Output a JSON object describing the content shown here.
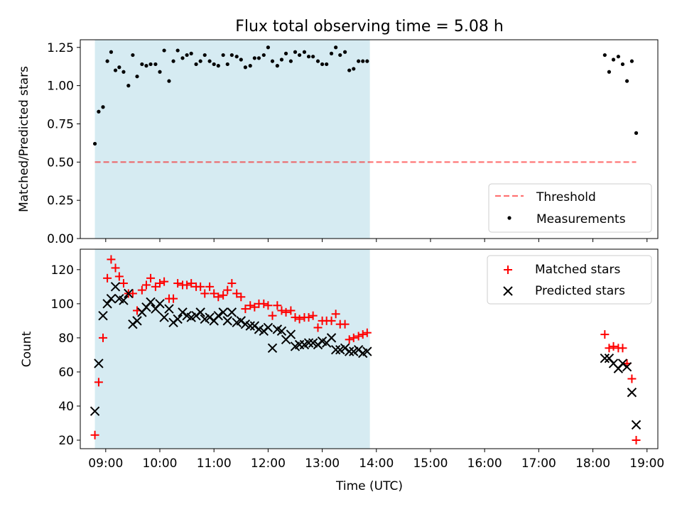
{
  "chart_data": [
    {
      "type": "scatter",
      "title": "Flux total observing time = 5.08 h",
      "xlabel": "",
      "ylabel": "Matched/Predicted stars",
      "xlim": [
        8.53,
        19.2
      ],
      "ylim": [
        0.0,
        1.3
      ],
      "yticks": [
        "0.00",
        "0.25",
        "0.50",
        "0.75",
        "1.00",
        "1.25"
      ],
      "ytick_values": [
        0.0,
        0.25,
        0.5,
        0.75,
        1.0,
        1.25
      ],
      "shaded_span": [
        8.8,
        13.88
      ],
      "shaded_color": "#add8e6",
      "legend_position": "lower-right",
      "series": [
        {
          "name": "Threshold",
          "style": "dashed-line",
          "color": "#ff0000",
          "x": [
            8.8,
            18.8
          ],
          "y": [
            0.5,
            0.5
          ]
        },
        {
          "name": "Measurements",
          "style": "dot",
          "color": "#000000",
          "x": [
            8.8,
            8.87,
            8.95,
            9.03,
            9.1,
            9.18,
            9.25,
            9.33,
            9.42,
            9.5,
            9.58,
            9.67,
            9.75,
            9.83,
            9.92,
            10.0,
            10.08,
            10.17,
            10.25,
            10.33,
            10.42,
            10.5,
            10.58,
            10.67,
            10.75,
            10.83,
            10.92,
            11.0,
            11.08,
            11.17,
            11.25,
            11.33,
            11.42,
            11.5,
            11.58,
            11.67,
            11.75,
            11.83,
            11.92,
            12.0,
            12.08,
            12.17,
            12.25,
            12.33,
            12.42,
            12.5,
            12.58,
            12.67,
            12.75,
            12.83,
            12.92,
            13.0,
            13.08,
            13.17,
            13.25,
            13.33,
            13.42,
            13.5,
            13.58,
            13.67,
            13.75,
            13.83,
            18.22,
            18.3,
            18.38,
            18.47,
            18.55,
            18.63,
            18.72,
            18.8
          ],
          "y": [
            0.62,
            0.83,
            0.86,
            1.16,
            1.22,
            1.1,
            1.12,
            1.09,
            1.0,
            1.2,
            1.06,
            1.14,
            1.13,
            1.14,
            1.14,
            1.09,
            1.23,
            1.03,
            1.16,
            1.23,
            1.18,
            1.2,
            1.21,
            1.14,
            1.16,
            1.2,
            1.16,
            1.14,
            1.13,
            1.2,
            1.14,
            1.2,
            1.19,
            1.17,
            1.12,
            1.13,
            1.18,
            1.18,
            1.2,
            1.25,
            1.16,
            1.13,
            1.17,
            1.21,
            1.16,
            1.22,
            1.2,
            1.22,
            1.19,
            1.19,
            1.16,
            1.14,
            1.14,
            1.21,
            1.25,
            1.2,
            1.22,
            1.1,
            1.11,
            1.16,
            1.16,
            1.16,
            1.2,
            1.09,
            1.17,
            1.19,
            1.14,
            1.03,
            1.16,
            0.69
          ]
        }
      ]
    },
    {
      "type": "scatter",
      "title": "",
      "xlabel": "Time (UTC)",
      "ylabel": "Count",
      "xlim": [
        8.53,
        19.2
      ],
      "ylim": [
        15,
        132
      ],
      "yticks": [
        "20",
        "40",
        "60",
        "80",
        "100",
        "120"
      ],
      "ytick_values": [
        20,
        40,
        60,
        80,
        100,
        120
      ],
      "xticks": [
        "09:00",
        "10:00",
        "11:00",
        "12:00",
        "13:00",
        "14:00",
        "15:00",
        "16:00",
        "17:00",
        "18:00",
        "19:00"
      ],
      "xtick_values": [
        9,
        10,
        11,
        12,
        13,
        14,
        15,
        16,
        17,
        18,
        19
      ],
      "shaded_span": [
        8.8,
        13.88
      ],
      "shaded_color": "#add8e6",
      "legend_position": "top-right",
      "series": [
        {
          "name": "Matched stars",
          "style": "plus",
          "color": "#ff0000",
          "x": [
            8.8,
            8.87,
            8.95,
            9.03,
            9.1,
            9.18,
            9.25,
            9.33,
            9.42,
            9.5,
            9.58,
            9.67,
            9.75,
            9.83,
            9.92,
            10.0,
            10.08,
            10.17,
            10.25,
            10.33,
            10.42,
            10.5,
            10.58,
            10.67,
            10.75,
            10.83,
            10.92,
            11.0,
            11.08,
            11.17,
            11.25,
            11.33,
            11.42,
            11.5,
            11.58,
            11.67,
            11.75,
            11.83,
            11.92,
            12.0,
            12.08,
            12.17,
            12.25,
            12.33,
            12.42,
            12.5,
            12.58,
            12.67,
            12.75,
            12.83,
            12.92,
            13.0,
            13.08,
            13.17,
            13.25,
            13.33,
            13.42,
            13.5,
            13.58,
            13.67,
            13.75,
            13.83,
            18.22,
            18.3,
            18.38,
            18.47,
            18.55,
            18.63,
            18.72,
            18.8
          ],
          "y": [
            23,
            54,
            80,
            115,
            126,
            121,
            116,
            112,
            106,
            106,
            96,
            108,
            111,
            115,
            110,
            112,
            113,
            103,
            103,
            112,
            111,
            111,
            112,
            110,
            110,
            106,
            110,
            106,
            104,
            105,
            108,
            112,
            106,
            104,
            97,
            99,
            98,
            100,
            100,
            99,
            93,
            99,
            96,
            95,
            96,
            92,
            91,
            92,
            92,
            93,
            86,
            90,
            90,
            90,
            94,
            88,
            88,
            79,
            80,
            81,
            82,
            83,
            82,
            74,
            75,
            74,
            74,
            65,
            56,
            20
          ]
        },
        {
          "name": "Predicted stars",
          "style": "cross",
          "color": "#000000",
          "x": [
            8.8,
            8.87,
            8.95,
            9.03,
            9.1,
            9.18,
            9.25,
            9.33,
            9.42,
            9.5,
            9.58,
            9.67,
            9.75,
            9.83,
            9.92,
            10.0,
            10.08,
            10.17,
            10.25,
            10.33,
            10.42,
            10.5,
            10.58,
            10.67,
            10.75,
            10.83,
            10.92,
            11.0,
            11.08,
            11.17,
            11.25,
            11.33,
            11.42,
            11.5,
            11.58,
            11.67,
            11.75,
            11.83,
            11.92,
            12.0,
            12.08,
            12.17,
            12.25,
            12.33,
            12.42,
            12.5,
            12.58,
            12.67,
            12.75,
            12.83,
            12.92,
            13.0,
            13.08,
            13.17,
            13.25,
            13.33,
            13.42,
            13.5,
            13.58,
            13.67,
            13.75,
            13.83,
            18.22,
            18.3,
            18.38,
            18.47,
            18.55,
            18.63,
            18.72,
            18.8
          ],
          "y": [
            37,
            65,
            93,
            100,
            103,
            110,
            103,
            102,
            106,
            88,
            90,
            95,
            98,
            101,
            97,
            100,
            92,
            97,
            89,
            91,
            95,
            93,
            92,
            93,
            95,
            91,
            92,
            90,
            93,
            95,
            90,
            95,
            89,
            90,
            88,
            87,
            87,
            85,
            84,
            86,
            74,
            85,
            84,
            79,
            82,
            75,
            76,
            76,
            77,
            77,
            76,
            78,
            77,
            80,
            73,
            73,
            74,
            72,
            72,
            73,
            71,
            72,
            68,
            68,
            65,
            62,
            65,
            63,
            48,
            29
          ]
        }
      ]
    }
  ]
}
